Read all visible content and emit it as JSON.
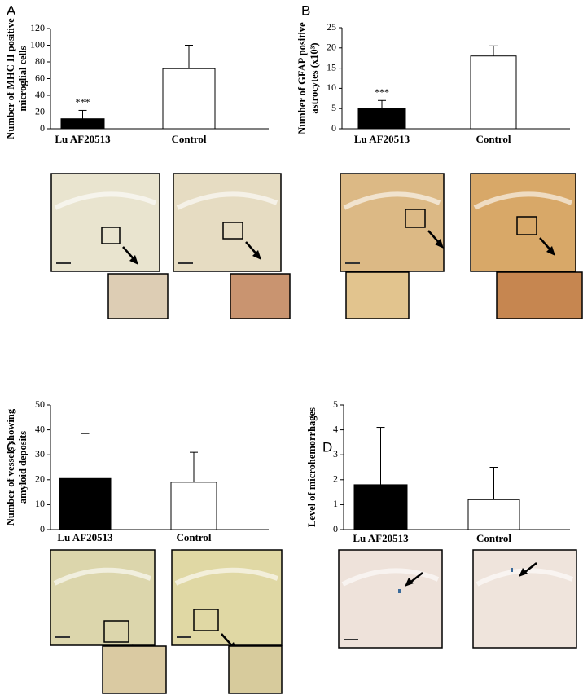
{
  "chart_data": [
    {
      "type": "bar",
      "panel": "A",
      "ylabel": [
        "Number of MHC II positive",
        "microglial cells"
      ],
      "categories": [
        "Lu AF20513",
        "Control"
      ],
      "values": [
        12,
        72
      ],
      "errors": [
        10,
        28
      ],
      "colors": [
        "#000000",
        "#ffffff"
      ],
      "bar_annotations": [
        "***",
        null
      ],
      "ylim": [
        0,
        120
      ],
      "yticks": [
        0,
        20,
        40,
        60,
        80,
        100,
        120
      ]
    },
    {
      "type": "bar",
      "panel": "B",
      "ylabel": [
        "Number of GFAP positive",
        "astrocytes (x10³)"
      ],
      "categories": [
        "Lu AF20513",
        "Control"
      ],
      "values": [
        5,
        18
      ],
      "errors": [
        2,
        2.5
      ],
      "colors": [
        "#000000",
        "#ffffff"
      ],
      "bar_annotations": [
        "***",
        null
      ],
      "ylim": [
        0,
        25
      ],
      "yticks": [
        0,
        5,
        10,
        15,
        20,
        25
      ]
    },
    {
      "type": "bar",
      "panel": "C",
      "ylabel": [
        "Number of vessels showing",
        "amyloid deposits"
      ],
      "categories": [
        "Lu AF20513",
        "Control"
      ],
      "values": [
        20.5,
        19
      ],
      "errors": [
        18,
        12
      ],
      "colors": [
        "#000000",
        "#ffffff"
      ],
      "ylim": [
        0,
        50
      ],
      "yticks": [
        0,
        10,
        20,
        30,
        40,
        50
      ]
    },
    {
      "type": "bar",
      "panel": "D",
      "ylabel": [
        "Level of microhemorrhages"
      ],
      "categories": [
        "Lu AF20513",
        "Control"
      ],
      "values": [
        1.8,
        1.2
      ],
      "errors": [
        2.3,
        1.3
      ],
      "colors": [
        "#000000",
        "#ffffff"
      ],
      "ylim": [
        0,
        5
      ],
      "yticks": [
        0,
        1,
        2,
        3,
        4,
        5
      ]
    }
  ]
}
